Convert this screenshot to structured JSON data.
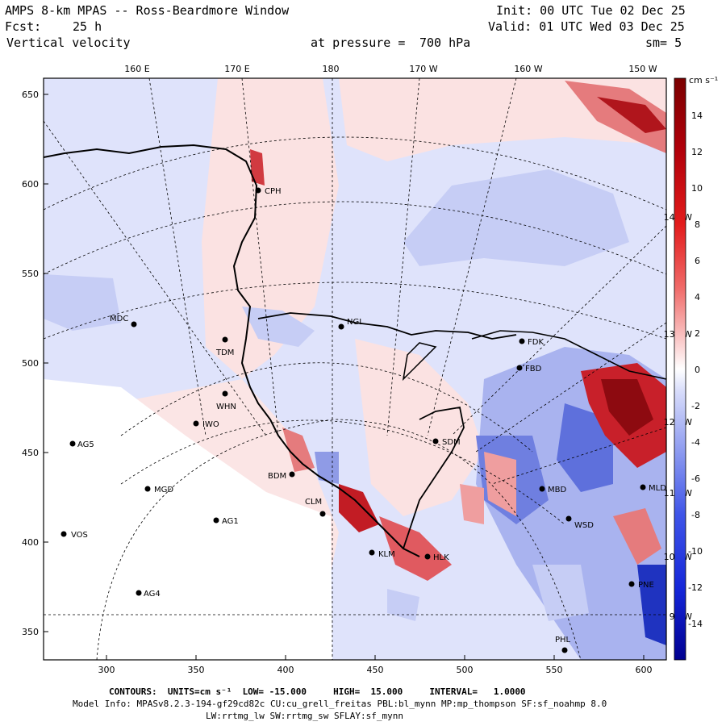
{
  "header": {
    "title": "AMPS 8-km MPAS -- Ross-Beardmore Window",
    "init": "Init: 00 UTC Tue 02 Dec 25",
    "fcst_label": "Fcst:",
    "fcst_value": "25 h",
    "valid": "Valid: 01 UTC Wed 03 Dec 25",
    "field": "Vertical velocity",
    "level_label": "at pressure =",
    "level_value": "700 hPa",
    "smoothing": "sm= 5"
  },
  "map": {
    "lon_top_labels": [
      "160 E",
      "170 E",
      "180",
      "170 W",
      "160 W",
      "150 W"
    ],
    "lon_right_labels": [
      "140 W",
      "130 W",
      "120 W",
      "110 W",
      "100 W",
      "90 W"
    ],
    "x_ticks": [
      "300",
      "350",
      "400",
      "450",
      "500",
      "550",
      "600"
    ],
    "y_ticks": [
      "650",
      "600",
      "550",
      "500",
      "450",
      "400",
      "350"
    ],
    "stations": [
      {
        "name": "CPH"
      },
      {
        "name": "NGL"
      },
      {
        "name": "MDC"
      },
      {
        "name": "TDM"
      },
      {
        "name": "WHN"
      },
      {
        "name": "IWO"
      },
      {
        "name": "AG5"
      },
      {
        "name": "MGD"
      },
      {
        "name": "AG1"
      },
      {
        "name": "VOS"
      },
      {
        "name": "AG4"
      },
      {
        "name": "BDM"
      },
      {
        "name": "CLM"
      },
      {
        "name": "SDM"
      },
      {
        "name": "KLM"
      },
      {
        "name": "HLK"
      },
      {
        "name": "FDK"
      },
      {
        "name": "FBD"
      },
      {
        "name": "MBD"
      },
      {
        "name": "WSD"
      },
      {
        "name": "MLD"
      },
      {
        "name": "PNE"
      },
      {
        "name": "PHL"
      }
    ]
  },
  "colorbar": {
    "units": "cm s⁻¹",
    "labels": [
      "14",
      "12",
      "10",
      "8",
      "6",
      "4",
      "2",
      "0",
      "-2",
      "-4",
      "-6",
      "-8",
      "-10",
      "-12",
      "-14"
    ],
    "colors": {
      "pos_max": "#7a0000",
      "neg_max": "#000090",
      "neutral": "#ffffff"
    }
  },
  "footer": {
    "contours": "CONTOURS:  UNITS=cm s⁻¹  LOW= -15.000     HIGH=  15.000     INTERVAL=   1.0000",
    "model_info": "Model Info: MPASv8.2.3-194-gf29cd82c CU:cu_grell_freitas PBL:bl_mynn MP:mp_thompson SF:sf_noahmp 8.0",
    "physics": "LW:rrtmg_lw SW:rrtmg_sw SFLAY:sf_mynn"
  }
}
